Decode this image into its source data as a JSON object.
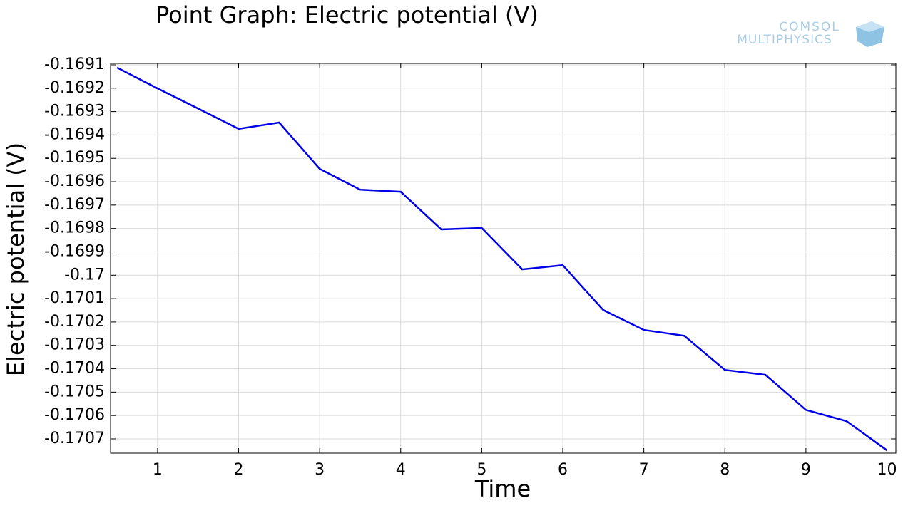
{
  "chart_data": {
    "type": "line",
    "title": "Point Graph: Electric potential (V)",
    "annotations": [
      "COMSOL",
      "MULTIPHYSICS"
    ],
    "xlabel": "Time",
    "ylabel": "Electric potential (V)",
    "x": [
      0.5,
      1,
      1.5,
      2,
      2.5,
      3,
      3.5,
      4,
      4.5,
      5,
      5.5,
      6,
      6.5,
      7,
      7.5,
      8,
      8.5,
      9,
      9.5,
      10
    ],
    "series": [
      {
        "color": "#0000e6",
        "values": [
          -0.169112,
          -0.169201,
          -0.169287,
          -0.169374,
          -0.169347,
          -0.169545,
          -0.169634,
          -0.169643,
          -0.169804,
          -0.169798,
          -0.169975,
          -0.169957,
          -0.170149,
          -0.170234,
          -0.170259,
          -0.170405,
          -0.170426,
          -0.170576,
          -0.170624,
          -0.170749
        ]
      }
    ],
    "xlim": [
      0.42,
      10.11
    ],
    "ylim": [
      -0.170761,
      -0.169094
    ],
    "xticks": [
      1,
      2,
      3,
      4,
      5,
      6,
      7,
      8,
      9,
      10
    ],
    "yticks": [
      -0.1691,
      -0.1692,
      -0.1693,
      -0.1694,
      -0.1695,
      -0.1696,
      -0.1697,
      -0.1698,
      -0.1699,
      -0.17,
      -0.1701,
      -0.1702,
      -0.1703,
      -0.1704,
      -0.1705,
      -0.1706,
      -0.1707
    ],
    "grid": true
  }
}
